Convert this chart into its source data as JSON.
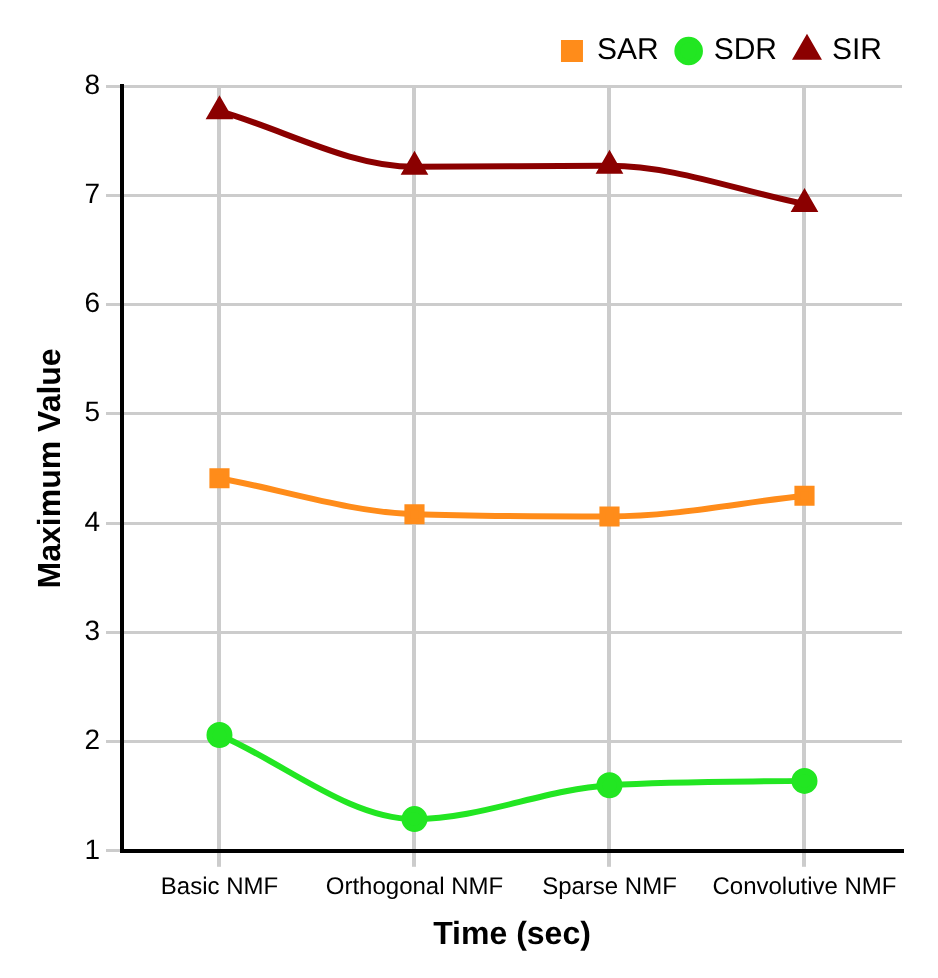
{
  "chart_data": {
    "type": "line",
    "xlabel": "Time (sec)",
    "ylabel": "Maximum Value",
    "categories": [
      "Basic NMF",
      "Orthogonal NMF",
      "Sparse NMF",
      "Convolutive NMF"
    ],
    "series": [
      {
        "name": "SAR",
        "color": "#ff8c1a",
        "marker": "square",
        "values": [
          4.41,
          4.08,
          4.06,
          4.25
        ]
      },
      {
        "name": "SDR",
        "color": "#22e622",
        "marker": "circle",
        "values": [
          2.06,
          1.29,
          1.6,
          1.64
        ]
      },
      {
        "name": "SIR",
        "color": "#8b0000",
        "marker": "triangle",
        "values": [
          7.77,
          7.26,
          7.27,
          6.92
        ]
      }
    ],
    "ylim": [
      1,
      8
    ],
    "yticks": [
      1,
      2,
      3,
      4,
      5,
      6,
      7,
      8
    ],
    "grid": true,
    "legend": "top right"
  }
}
